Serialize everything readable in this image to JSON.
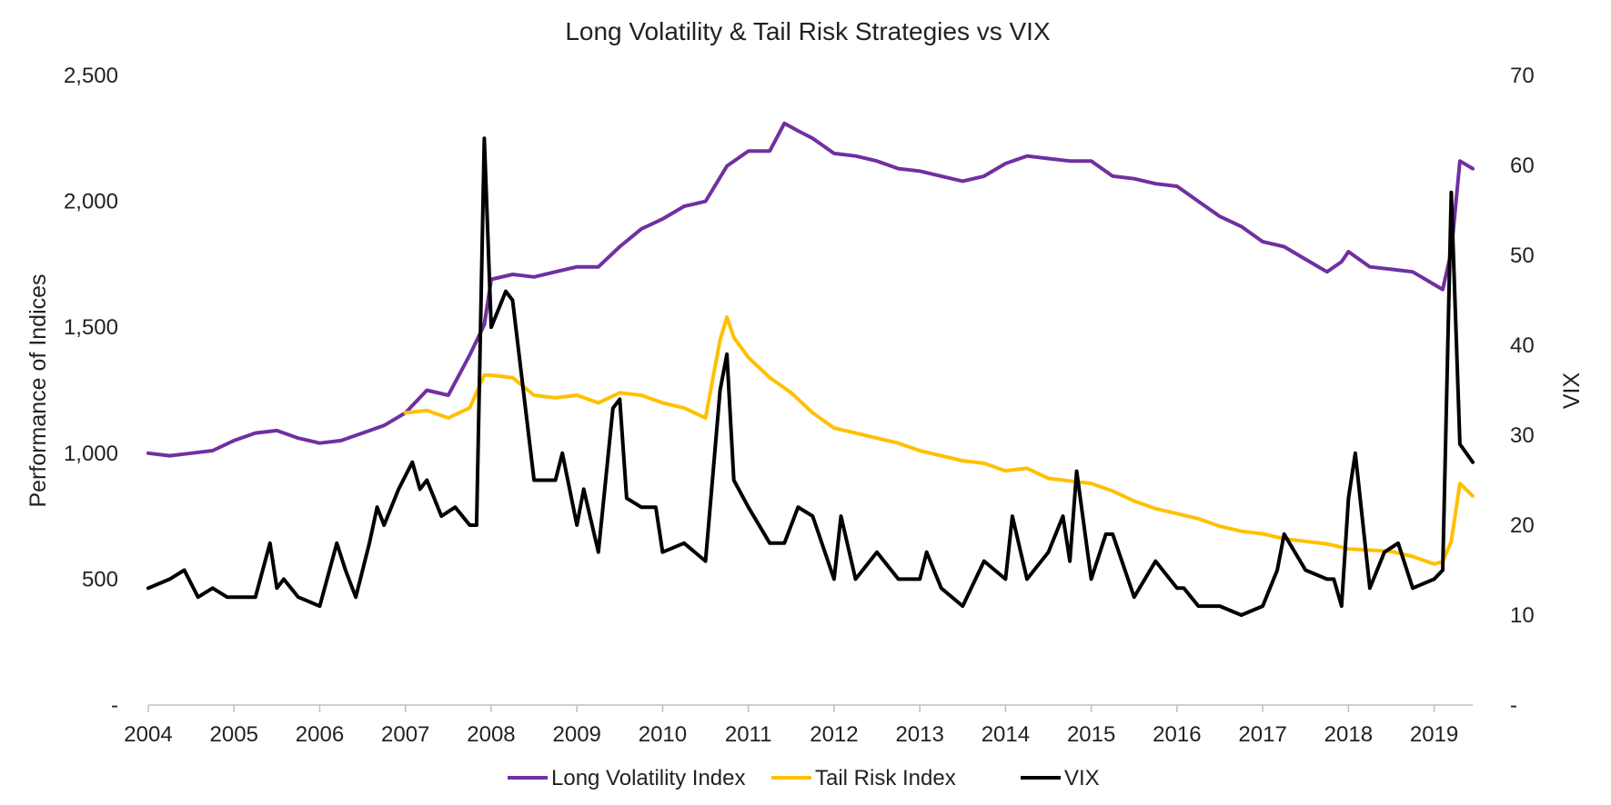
{
  "chart_data": {
    "type": "line",
    "title": "Long Volatility & Tail Risk Strategies vs VIX",
    "xlabel": "",
    "ylabel": "Performance of Indices",
    "y2label": "VIX",
    "xlim": [
      2004.0,
      2019.45
    ],
    "ylim": [
      0,
      2500
    ],
    "y2lim": [
      0,
      70
    ],
    "xticks": [
      "2004",
      "2005",
      "2006",
      "2007",
      "2008",
      "2009",
      "2010",
      "2011",
      "2012",
      "2013",
      "2014",
      "2015",
      "2016",
      "2017",
      "2018",
      "2019"
    ],
    "yticks": [
      "-",
      "500",
      "1,000",
      "1,500",
      "2,000",
      "2,500"
    ],
    "y2ticks": [
      "-",
      "10",
      "20",
      "30",
      "40",
      "50",
      "60",
      "70"
    ],
    "grid": false,
    "legend": "bottom",
    "series": [
      {
        "name": "Long Volatility Index",
        "color": "#7030A0",
        "axis": "left",
        "x": [
          2004.0,
          2004.25,
          2004.5,
          2004.75,
          2005.0,
          2005.25,
          2005.5,
          2005.75,
          2006.0,
          2006.25,
          2006.5,
          2006.75,
          2007.0,
          2007.25,
          2007.5,
          2007.75,
          2007.92,
          2008.0,
          2008.25,
          2008.5,
          2008.75,
          2009.0,
          2009.25,
          2009.5,
          2009.75,
          2010.0,
          2010.25,
          2010.5,
          2010.75,
          2011.0,
          2011.25,
          2011.42,
          2011.58,
          2011.75,
          2012.0,
          2012.25,
          2012.5,
          2012.75,
          2013.0,
          2013.25,
          2013.5,
          2013.75,
          2014.0,
          2014.25,
          2014.5,
          2014.75,
          2015.0,
          2015.25,
          2015.5,
          2015.75,
          2016.0,
          2016.25,
          2016.5,
          2016.75,
          2017.0,
          2017.25,
          2017.5,
          2017.75,
          2017.92,
          2018.0,
          2018.25,
          2018.5,
          2018.75,
          2019.0,
          2019.1,
          2019.2,
          2019.3,
          2019.45
        ],
        "values": [
          1000,
          990,
          1000,
          1010,
          1050,
          1080,
          1090,
          1060,
          1040,
          1050,
          1080,
          1110,
          1160,
          1250,
          1230,
          1390,
          1510,
          1690,
          1710,
          1700,
          1720,
          1740,
          1740,
          1820,
          1890,
          1930,
          1980,
          2000,
          2140,
          2200,
          2200,
          2310,
          2280,
          2250,
          2190,
          2180,
          2160,
          2130,
          2120,
          2100,
          2080,
          2100,
          2150,
          2180,
          2170,
          2160,
          2160,
          2100,
          2090,
          2070,
          2060,
          2000,
          1940,
          1900,
          1840,
          1820,
          1770,
          1720,
          1760,
          1800,
          1740,
          1730,
          1720,
          1670,
          1650,
          1800,
          2160,
          2130
        ]
      },
      {
        "name": "Tail Risk Index",
        "color": "#FFC000",
        "axis": "left",
        "x": [
          2007.0,
          2007.25,
          2007.5,
          2007.75,
          2007.92,
          2008.0,
          2008.25,
          2008.5,
          2008.75,
          2009.0,
          2009.25,
          2009.5,
          2009.75,
          2010.0,
          2010.25,
          2010.5,
          2010.67,
          2010.75,
          2010.83,
          2011.0,
          2011.25,
          2011.5,
          2011.75,
          2012.0,
          2012.25,
          2012.5,
          2012.75,
          2013.0,
          2013.25,
          2013.5,
          2013.75,
          2014.0,
          2014.25,
          2014.5,
          2014.75,
          2015.0,
          2015.25,
          2015.5,
          2015.75,
          2016.0,
          2016.25,
          2016.5,
          2016.75,
          2017.0,
          2017.25,
          2017.5,
          2017.75,
          2018.0,
          2018.25,
          2018.5,
          2018.75,
          2019.0,
          2019.1,
          2019.2,
          2019.3,
          2019.45
        ],
        "values": [
          1160,
          1170,
          1140,
          1180,
          1310,
          1310,
          1300,
          1230,
          1220,
          1230,
          1200,
          1240,
          1230,
          1200,
          1180,
          1140,
          1450,
          1540,
          1460,
          1380,
          1300,
          1240,
          1160,
          1100,
          1080,
          1060,
          1040,
          1010,
          990,
          970,
          960,
          930,
          940,
          900,
          890,
          880,
          850,
          810,
          780,
          760,
          740,
          710,
          690,
          680,
          660,
          650,
          640,
          620,
          615,
          610,
          590,
          560,
          570,
          650,
          880,
          830
        ]
      },
      {
        "name": "VIX",
        "color": "#000000",
        "axis": "right",
        "x": [
          2004.0,
          2004.25,
          2004.42,
          2004.58,
          2004.75,
          2004.92,
          2005.0,
          2005.25,
          2005.42,
          2005.5,
          2005.58,
          2005.75,
          2006.0,
          2006.2,
          2006.3,
          2006.42,
          2006.58,
          2006.67,
          2006.75,
          2006.92,
          2007.08,
          2007.17,
          2007.25,
          2007.42,
          2007.58,
          2007.75,
          2007.83,
          2007.92,
          2008.0,
          2008.17,
          2008.25,
          2008.5,
          2008.75,
          2008.83,
          2009.0,
          2009.08,
          2009.25,
          2009.42,
          2009.5,
          2009.58,
          2009.75,
          2009.92,
          2010.0,
          2010.25,
          2010.5,
          2010.67,
          2010.75,
          2010.83,
          2011.0,
          2011.25,
          2011.42,
          2011.58,
          2011.75,
          2012.0,
          2012.08,
          2012.25,
          2012.5,
          2012.75,
          2013.0,
          2013.08,
          2013.25,
          2013.5,
          2013.75,
          2014.0,
          2014.08,
          2014.25,
          2014.5,
          2014.67,
          2014.75,
          2014.83,
          2015.0,
          2015.17,
          2015.25,
          2015.5,
          2015.75,
          2016.0,
          2016.08,
          2016.25,
          2016.5,
          2016.75,
          2017.0,
          2017.17,
          2017.25,
          2017.5,
          2017.75,
          2017.83,
          2017.92,
          2018.0,
          2018.08,
          2018.25,
          2018.42,
          2018.58,
          2018.75,
          2019.0,
          2019.1,
          2019.2,
          2019.3,
          2019.45
        ],
        "values": [
          13,
          14,
          15,
          12,
          13,
          12,
          12,
          12,
          18,
          13,
          14,
          12,
          11,
          18,
          15,
          12,
          18,
          22,
          20,
          24,
          27,
          24,
          25,
          21,
          22,
          20,
          20,
          63,
          42,
          46,
          45,
          25,
          25,
          28,
          20,
          24,
          17,
          33,
          34,
          23,
          22,
          22,
          17,
          18,
          16,
          35,
          39,
          25,
          22,
          18,
          18,
          22,
          21,
          14,
          21,
          14,
          17,
          14,
          14,
          17,
          13,
          11,
          16,
          14,
          21,
          14,
          17,
          21,
          16,
          26,
          14,
          19,
          19,
          12,
          16,
          13,
          13,
          11,
          11,
          10,
          11,
          15,
          19,
          15,
          14,
          14,
          11,
          23,
          28,
          13,
          17,
          18,
          13,
          14,
          15,
          57,
          29,
          27
        ]
      }
    ]
  }
}
